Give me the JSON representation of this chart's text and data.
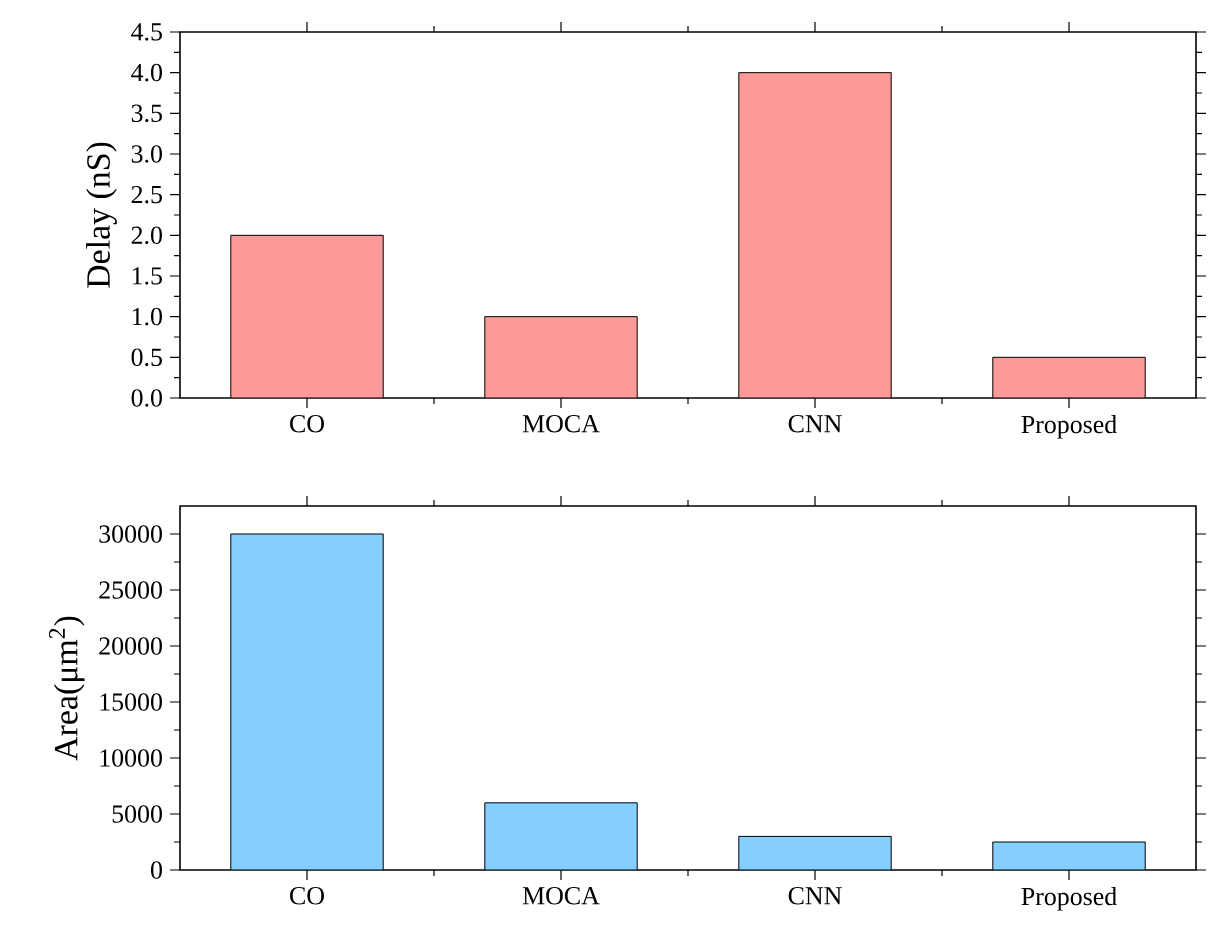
{
  "chart_data": [
    {
      "type": "bar",
      "categories": [
        "CO",
        "MOCA",
        "CNN",
        "Proposed"
      ],
      "values": [
        2.0,
        1.0,
        4.0,
        0.5
      ],
      "color": "#fc9a9a",
      "ylabel": "Delay (nS)",
      "ylim": [
        0,
        4.5
      ],
      "yticks": [
        {
          "value": 0,
          "label": "0.0"
        },
        {
          "value": 0.5,
          "label": "0.5"
        },
        {
          "value": 1,
          "label": "1.0"
        },
        {
          "value": 1.5,
          "label": "1.5"
        },
        {
          "value": 2,
          "label": "2.0"
        },
        {
          "value": 2.5,
          "label": "2.5"
        },
        {
          "value": 3,
          "label": "3.0"
        },
        {
          "value": 3.5,
          "label": "3.5"
        },
        {
          "value": 4,
          "label": "4.0"
        },
        {
          "value": 4.5,
          "label": "4.5"
        }
      ]
    },
    {
      "type": "bar",
      "categories": [
        "CO",
        "MOCA",
        "CNN",
        "Proposed"
      ],
      "values": [
        30000,
        6000,
        3000,
        2500
      ],
      "color": "#84cffd",
      "ylabel": "Area(μm$^{2}$)",
      "ylim": [
        0,
        32500
      ],
      "yticks": [
        0,
        5000,
        10000,
        15000,
        20000,
        25000,
        30000
      ]
    }
  ]
}
